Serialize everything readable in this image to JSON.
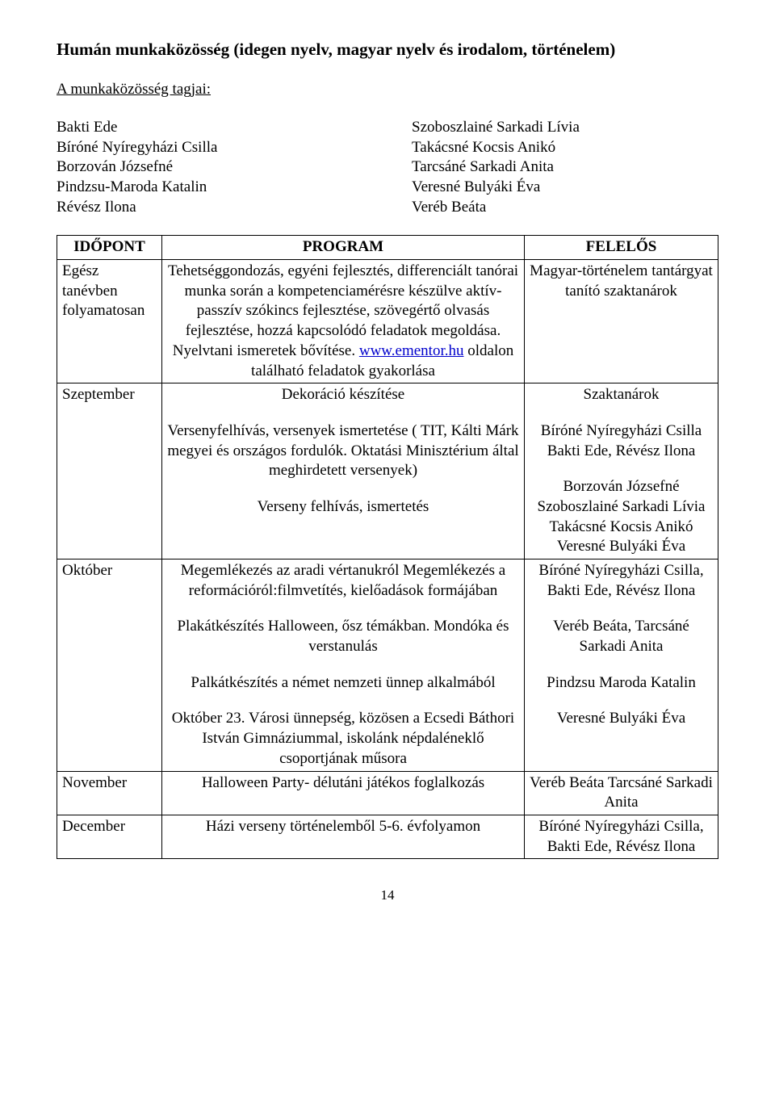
{
  "title": "Humán munkaközösség (idegen nyelv, magyar nyelv és irodalom, történelem)",
  "members_heading": "A munkaközösség tagjai:",
  "members_left": [
    "Bakti Ede",
    "Bíróné Nyíregyházi Csilla",
    "Borzován Józsefné",
    "Pindzsu-Maroda Katalin",
    "Révész Ilona"
  ],
  "members_right": [
    "Szoboszlainé Sarkadi Lívia",
    "Takácsné Kocsis Anikó",
    "Tarcsáné Sarkadi Anita",
    "Veresné Bulyáki Éva",
    "Veréb Beáta"
  ],
  "table": {
    "headers": {
      "time": "IDŐPONT",
      "program": "PROGRAM",
      "responsible": "FELELŐS"
    },
    "rows": [
      {
        "time": "Egész tanévben folyamatosan",
        "program_pre": "Tehetséggondozás, egyéni fejlesztés, differenciált tanórai munka során a kompetenciamérésre készülve aktív-passzív szókincs fejlesztése, szövegértő olvasás fejlesztése, hozzá kapcsolódó feladatok megoldása. Nyelvtani ismeretek bővítése. ",
        "program_link": "www.ementor.hu",
        "program_post": " oldalon található feladatok gyakorlása",
        "responsible": "Magyar-történelem tantárgyat tanító szaktanárok"
      },
      {
        "time": "Szeptember",
        "program_blocks": [
          "Dekoráció készítése",
          "Versenyfelhívás, versenyek ismertetése ( TIT, Kálti Márk megyei és országos fordulók. Oktatási Minisztérium által meghirdetett versenyek)",
          "Verseny felhívás, ismertetés"
        ],
        "responsible_blocks": [
          "Szaktanárok",
          "Bíróné Nyíregyházi Csilla Bakti Ede, Révész Ilona",
          "Borzován Józsefné Szoboszlainé Sarkadi Lívia Takácsné Kocsis Anikó Veresné Bulyáki Éva"
        ]
      },
      {
        "time": "Október",
        "program_blocks": [
          "Megemlékezés az aradi vértanukról Megemlékezés a reformációról:filmvetítés, kielőadások formájában",
          "Plakátkészítés Halloween, ősz témákban. Mondóka és verstanulás",
          "Palkátkészítés a német nemzeti ünnep alkalmából",
          "Október 23. Városi ünnepség, közösen a Ecsedi Báthori István Gimnáziummal, iskolánk népdaléneklő csoportjának műsora"
        ],
        "responsible_blocks": [
          "Bíróné Nyíregyházi Csilla, Bakti Ede, Révész Ilona",
          "Veréb Beáta, Tarcsáné Sarkadi Anita",
          "Pindzsu Maroda Katalin",
          "Veresné Bulyáki Éva"
        ]
      },
      {
        "time": "November",
        "program": "Halloween Party- délutáni játékos foglalkozás",
        "responsible": "Veréb Beáta Tarcsáné Sarkadi Anita"
      },
      {
        "time": "December",
        "program": "Házi verseny történelemből 5-6. évfolyamon",
        "responsible": "Bíróné Nyíregyházi Csilla, Bakti Ede, Révész Ilona"
      }
    ]
  },
  "page_number": "14",
  "colors": {
    "link": "#0000cc",
    "border": "#000000",
    "text": "#000000",
    "background": "#ffffff"
  },
  "typography": {
    "base_fontsize": 19,
    "title_fontsize": 21,
    "font_family": "Times New Roman"
  }
}
